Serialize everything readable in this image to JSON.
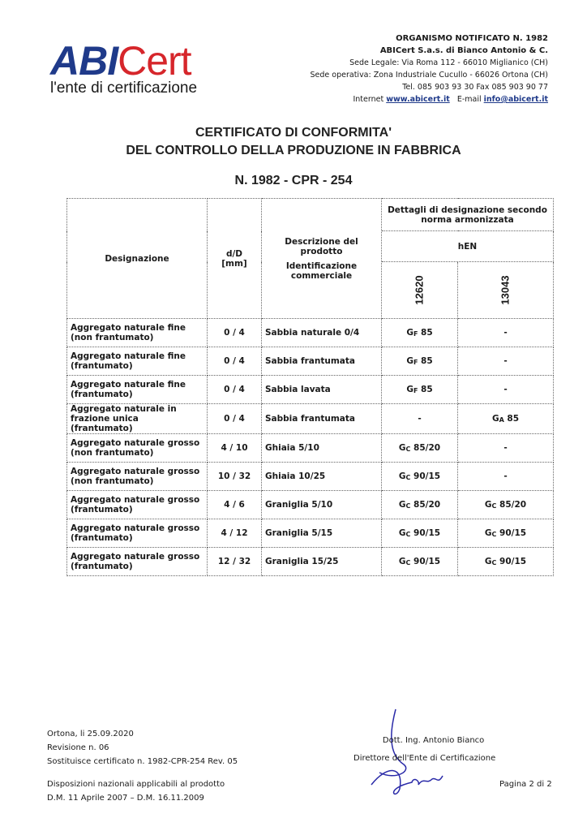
{
  "logo": {
    "brand_abi": "ABI",
    "brand_cert": "Cert",
    "tagline": "l'ente di certificazione",
    "colors": {
      "blue": "#1f3a8a",
      "red": "#d6262b"
    }
  },
  "header": {
    "line1": "ORGANISMO NOTIFICATO N. 1982",
    "line2": "ABICert S.a.s. di Bianco Antonio & C.",
    "line3": "Sede Legale: Via Roma 112 - 66010 Miglianico (CH)",
    "line4": "Sede operativa: Zona Industriale Cucullo - 66026 Ortona (CH)",
    "line5": "Tel. 085 903 93 30   Fax 085 903 90 77",
    "internet_label": "Internet",
    "website": "www.abicert.it",
    "email_label": "E-mail",
    "email": "info@abicert.it"
  },
  "title": {
    "line1": "CERTIFICATO DI CONFORMITA'",
    "line2": "DEL CONTROLLO DELLA PRODUZIONE IN FABBRICA",
    "number": "N. 1982 - CPR - 254"
  },
  "table": {
    "headers": {
      "designazione": "Designazione",
      "dD": "d/D",
      "dD_unit": "[mm]",
      "descr1": "Descrizione del prodotto",
      "descr2": "Identificazione commerciale",
      "details": "Dettagli di designazione secondo norma armonizzata",
      "hen": "hEN",
      "std1": "12620",
      "std2": "13043"
    },
    "rows": [
      {
        "des": "Aggregato naturale fine (non frantumato)",
        "dD": "0 / 4",
        "name": "Sabbia naturale 0/4",
        "c1": {
          "g": "G",
          "s": "F",
          "v": " 85"
        },
        "c2": {
          "g": "-",
          "s": "",
          "v": ""
        }
      },
      {
        "des": "Aggregato naturale fine (frantumato)",
        "dD": "0 / 4",
        "name": "Sabbia frantumata",
        "c1": {
          "g": "G",
          "s": "F",
          "v": " 85"
        },
        "c2": {
          "g": "-",
          "s": "",
          "v": ""
        }
      },
      {
        "des": "Aggregato naturale fine (frantumato)",
        "dD": "0 / 4",
        "name": "Sabbia lavata",
        "c1": {
          "g": "G",
          "s": "F",
          "v": " 85"
        },
        "c2": {
          "g": "-",
          "s": "",
          "v": ""
        }
      },
      {
        "des": "Aggregato naturale in frazione unica (frantumato)",
        "dD": "0 / 4",
        "name": "Sabbia frantumata",
        "c1": {
          "g": "-",
          "s": "",
          "v": ""
        },
        "c2": {
          "g": "G",
          "s": "A",
          "v": " 85"
        }
      },
      {
        "des": "Aggregato naturale grosso (non frantumato)",
        "dD": "4 / 10",
        "name": "Ghiaia 5/10",
        "c1": {
          "g": "G",
          "s": "C",
          "v": " 85/20"
        },
        "c2": {
          "g": "-",
          "s": "",
          "v": ""
        }
      },
      {
        "des": "Aggregato naturale grosso (non frantumato)",
        "dD": "10 / 32",
        "name": "Ghiaia 10/25",
        "c1": {
          "g": "G",
          "s": "C",
          "v": " 90/15"
        },
        "c2": {
          "g": "-",
          "s": "",
          "v": ""
        }
      },
      {
        "des": "Aggregato naturale grosso (frantumato)",
        "dD": "4 / 6",
        "name": "Graniglia 5/10",
        "c1": {
          "g": "G",
          "s": "C",
          "v": " 85/20"
        },
        "c2": {
          "g": "G",
          "s": "C",
          "v": " 85/20"
        }
      },
      {
        "des": "Aggregato naturale grosso (frantumato)",
        "dD": "4 / 12",
        "name": "Graniglia 5/15",
        "c1": {
          "g": "G",
          "s": "C",
          "v": " 90/15"
        },
        "c2": {
          "g": "G",
          "s": "C",
          "v": " 90/15"
        }
      },
      {
        "des": "Aggregato naturale grosso (frantumato)",
        "dD": "12 / 32",
        "name": "Graniglia 15/25",
        "c1": {
          "g": "G",
          "s": "C",
          "v": " 90/15"
        },
        "c2": {
          "g": "G",
          "s": "C",
          "v": " 90/15"
        }
      }
    ]
  },
  "footer": {
    "date": "Ortona, li 25.09.2020",
    "revision": "Revisione n. 06",
    "replaces": "Sostituisce certificato n. 1982-CPR-254 Rev. 05",
    "national1": "Disposizioni nazionali applicabili al prodotto",
    "national2": "D.M. 11 Aprile 2007 – D.M. 16.11.2009",
    "signer": "Dott. Ing. Antonio Bianco",
    "signer_role": "Direttore dell'Ente di Certificazione",
    "page": "Pagina 2 di 2",
    "signature_color": "#2a2aa8"
  }
}
